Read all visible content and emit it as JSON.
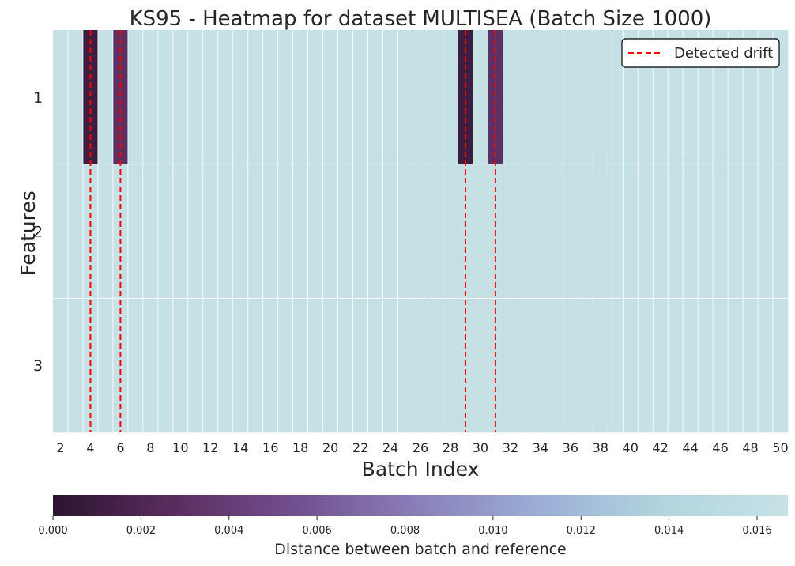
{
  "chart_data": {
    "type": "heatmap",
    "title": "KS95 - Heatmap for dataset MULTISEA (Batch Size 1000)",
    "xlabel": "Batch Index",
    "ylabel": "Features",
    "x": [
      2,
      3,
      4,
      5,
      6,
      7,
      8,
      9,
      10,
      11,
      12,
      13,
      14,
      15,
      16,
      17,
      18,
      19,
      20,
      21,
      22,
      23,
      24,
      25,
      26,
      27,
      28,
      29,
      30,
      31,
      32,
      33,
      34,
      35,
      36,
      37,
      38,
      39,
      40,
      41,
      42,
      43,
      44,
      45,
      46,
      47,
      48,
      49,
      50
    ],
    "x_tick_labels": [
      "2",
      "4",
      "6",
      "8",
      "10",
      "12",
      "14",
      "16",
      "18",
      "20",
      "22",
      "24",
      "26",
      "28",
      "30",
      "32",
      "34",
      "36",
      "38",
      "40",
      "42",
      "44",
      "46",
      "48",
      "50"
    ],
    "y": [
      "1",
      "2",
      "3"
    ],
    "default_value": 0.0165,
    "cells": [
      {
        "feature": "1",
        "batch": 4,
        "value": 0.001
      },
      {
        "feature": "1",
        "batch": 6,
        "value": 0.003
      },
      {
        "feature": "1",
        "batch": 29,
        "value": 0.001
      },
      {
        "feature": "1",
        "batch": 31,
        "value": 0.003
      }
    ],
    "drift_batches": [
      4,
      6,
      29,
      31
    ],
    "legend": {
      "label": "Detected drift",
      "placement": "upper right",
      "color": "#ff0000"
    },
    "colorbar": {
      "label": "Distance between batch and reference",
      "range": [
        0.0,
        0.0167
      ],
      "ticks": [
        "0.000",
        "0.002",
        "0.004",
        "0.006",
        "0.008",
        "0.010",
        "0.012",
        "0.014",
        "0.016"
      ],
      "tick_values": [
        0.0,
        0.002,
        0.004,
        0.006,
        0.008,
        0.01,
        0.012,
        0.014,
        0.016
      ],
      "colormap": [
        "#2d1530",
        "#5a2d5f",
        "#735090",
        "#8a80bb",
        "#9cb0d6",
        "#b2d5de",
        "#c7e2e7"
      ]
    },
    "grid": true
  }
}
